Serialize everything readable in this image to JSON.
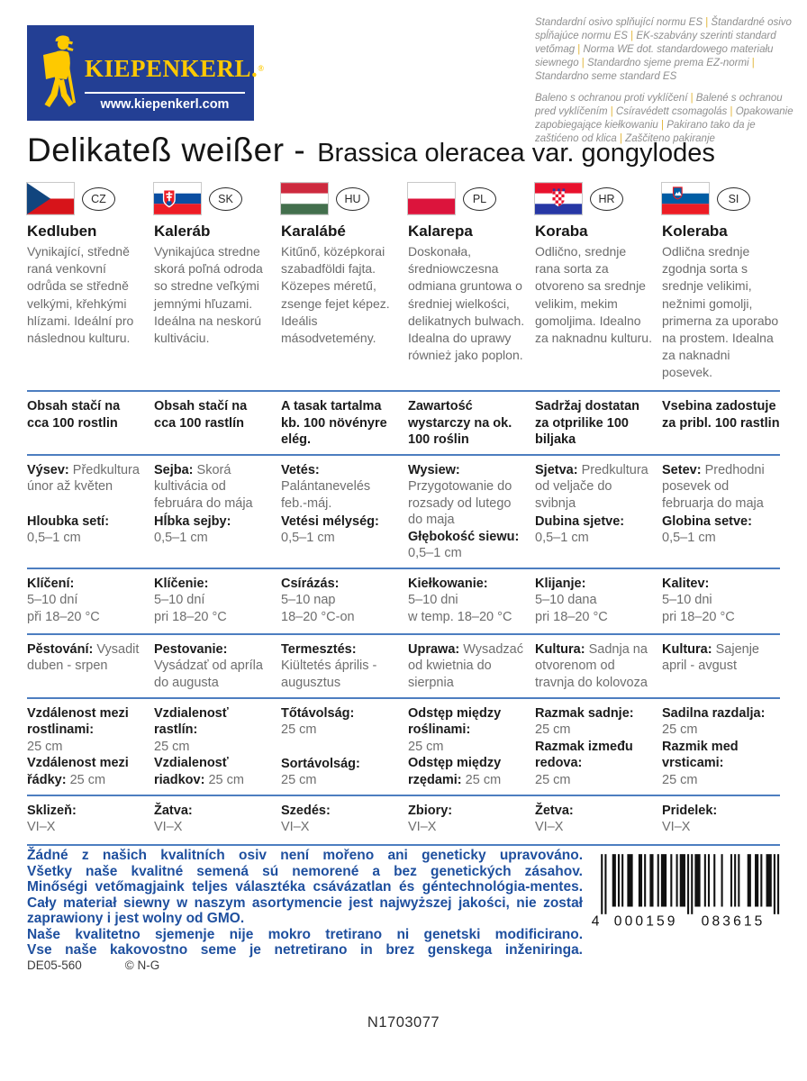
{
  "brand": {
    "name": "KIEPENKERL.",
    "reg_mark": "®",
    "website": "www.kiepenkerl.com",
    "colors": {
      "brand_blue": "#233f94",
      "brand_yellow": "#fec900"
    }
  },
  "standards_notice": {
    "norm_segments": [
      "Standardní osivo splňující normu ES",
      "Štandardné osivo spĺňajúce normu ES",
      "EK-szabvány szerinti standard vetőmag",
      "Norma WE dot. standardowego materiału siewnego",
      "Standardno sjeme prema EZ-normi",
      "Standardno seme standard ES"
    ],
    "packaging_segments": [
      "Baleno s ochranou proti vyklíčení",
      "Balené s ochranou pred vyklíčením",
      "Csíravédett csomagolás",
      "Opakowanie zapobiegające kiełkowaniu",
      "Pakirano tako da je zaštićeno od klica",
      "Zaščiteno pakiranje"
    ]
  },
  "title": {
    "variety": "Delikateß weißer -",
    "botanical": "Brassica oleracea var. gongylodes"
  },
  "columns": [
    {
      "country_code": "CZ",
      "name": "Kedluben",
      "description": "Vynikající, středně raná venkovní odrůda se středně velkými, křehkými hlízami. Ideální pro následnou kulturu.",
      "content": "Obsah stačí na cca 100 rostlin",
      "sowing_label": "Výsev:",
      "sowing": "Předkultura únor až květen",
      "depth_label": "Hloubka setí:",
      "depth": "0,5–1 cm",
      "germination_label": "Klíčení:",
      "germination": "5–10 dní\npři 18–20 °C",
      "culture_label": "Pěstování:",
      "culture": "Vysadit duben - srpen",
      "spacing1_label": "Vzdálenost mezi rostlinami:",
      "spacing1": "25 cm",
      "spacing2_label": "Vzdálenost mezi řádky:",
      "spacing2": "25 cm",
      "harvest_label": "Sklizeň:",
      "harvest": "VI–X"
    },
    {
      "country_code": "SK",
      "name": "Kaleráb",
      "description": "Vynikajúca stredne skorá poľná odroda so stredne veľkými jemnými hľuzami. Ideálna na neskorú kultiváciu.",
      "content": "Obsah stačí na cca 100 rastlín",
      "sowing_label": "Sejba:",
      "sowing": "Skorá kultivácia od februára do mája",
      "depth_label": "Hĺbka sejby:",
      "depth": "0,5–1 cm",
      "germination_label": "Klíčenie:",
      "germination": "5–10 dní\npri 18–20 °C",
      "culture_label": "Pestovanie:",
      "culture": "Vysádzať od apríla do augusta",
      "spacing1_label": "Vzdialenosť rastlín:",
      "spacing1": "25 cm",
      "spacing2_label": "Vzdialenosť riadkov:",
      "spacing2": "25 cm",
      "harvest_label": "Žatva:",
      "harvest": "VI–X"
    },
    {
      "country_code": "HU",
      "name": "Karalábé",
      "description": "Kitűnő, középkorai szabadföldi fajta. Közepes méretű, zsenge fejet képez. Ideális másodvetemény.",
      "content": "A tasak tartalma kb. 100 növényre elég.",
      "sowing_label": "Vetés:",
      "sowing": "Palántanevelés feb.-máj.",
      "depth_label": "Vetési mélység:",
      "depth": "0,5–1 cm",
      "germination_label": "Csírázás:",
      "germination": "5–10 nap\n18–20 °C-on",
      "culture_label": "Termesztés:",
      "culture": "Kiültetés április - augusztus",
      "spacing1_label": "Tőtávolság:",
      "spacing1": "25 cm",
      "spacing2_label": "Sortávolság:",
      "spacing2": "25 cm",
      "harvest_label": "Szedés:",
      "harvest": "VI–X"
    },
    {
      "country_code": "PL",
      "name": "Kalarepa",
      "description": "Doskonała, średniowczesna odmiana gruntowa o średniej wielkości, delikatnych bulwach. Idealna do uprawy również jako poplon.",
      "content": "Zawartość wystarczy na ok. 100 roślin",
      "sowing_label": "Wysiew:",
      "sowing": "Przygotowanie do rozsady od lutego do maja",
      "depth_label": "Głębokość siewu:",
      "depth": "0,5–1 cm",
      "germination_label": "Kiełkowanie:",
      "germination": "5–10 dni\nw temp. 18–20 °C",
      "culture_label": "Uprawa:",
      "culture": "Wysadzać od kwietnia do sierpnia",
      "spacing1_label": "Odstęp między roślinami:",
      "spacing1": "25 cm",
      "spacing2_label": "Odstęp między rzędami:",
      "spacing2": "25 cm",
      "harvest_label": "Zbiory:",
      "harvest": "VI–X"
    },
    {
      "country_code": "HR",
      "name": "Koraba",
      "description": "Odlično, srednje rana sorta za otvoreno sa srednje velikim, mekim gomoljima. Idealno za naknadnu kulturu.",
      "content": "Sadržaj dostatan za otprilike 100 biljaka",
      "sowing_label": "Sjetva:",
      "sowing": "Predkultura od veljače do svibnja",
      "depth_label": "Dubina sjetve:",
      "depth": "0,5–1 cm",
      "germination_label": "Klijanje:",
      "germination": "5–10 dana\npri 18–20 °C",
      "culture_label": "Kultura:",
      "culture": "Sadnja na otvorenom od travnja do kolovoza",
      "spacing1_label": "Razmak sadnje:",
      "spacing1": "25 cm",
      "spacing2_label": "Razmak između redova:",
      "spacing2": "25 cm",
      "harvest_label": "Žetva:",
      "harvest": "VI–X"
    },
    {
      "country_code": "SI",
      "name": "Koleraba",
      "description": "Odlična srednje zgodnja sorta s srednje velikimi, nežnimi gomolji, primerna za uporabo na prostem. Idealna za naknadni posevek.",
      "content": "Vsebina zadostuje za pribl. 100 rastlin",
      "sowing_label": "Setev:",
      "sowing": "Predhodni posevek od februarja do maja",
      "depth_label": "Globina setve:",
      "depth": "0,5–1 cm",
      "germination_label": "Kalitev:",
      "germination": "5–10 dni\npri 18–20 °C",
      "culture_label": "Kultura:",
      "culture": "Sajenje april - avgust",
      "spacing1_label": "Sadilna razdalja:",
      "spacing1": "25 cm",
      "spacing2_label": "Razmik med vrsticami:",
      "spacing2": "25 cm",
      "harvest_label": "Pridelek:",
      "harvest": "VI–X"
    }
  ],
  "footer": {
    "gmo_lines": [
      "Žádné z našich kvalitních osiv není mořeno ani geneticky upravováno.",
      "Všetky naše kvalitné semená sú nemorené a bez genetických zásahov.",
      "Minőségi vetőmagjaink teljes választéka csávázatlan és géntechnológia-mentes.",
      "Cały materiał siewny w naszym asortymencie jest najwyższej jakości, nie został zaprawiony i jest wolny od GMO.",
      "Naše kvalitetno sjemenje nije mokro tretirano ni genetski modificirano.",
      "Vse naše kakovostno seme je netretirano in brez genskega inženiringa."
    ],
    "print_code": "DE05-560",
    "copyright": "© N-G",
    "barcode": {
      "prefix": "4",
      "left_digits": "000159",
      "right_digits": "083615"
    },
    "batch_code": "N1703077",
    "footer_blue": "#1e4f9e",
    "rule_blue": "#4d7ec0"
  }
}
